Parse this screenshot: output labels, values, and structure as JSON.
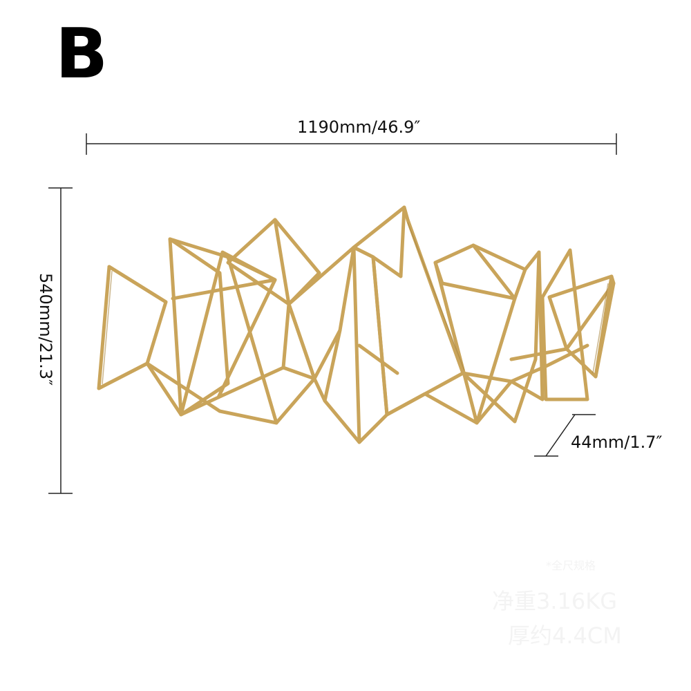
{
  "label": "B",
  "dimensions": {
    "width": "1190mm/46.9″",
    "height": "540mm/21.3″",
    "depth": "44mm/1.7″"
  },
  "watermark": {
    "line1": "*全尺规格",
    "line2": "净重3.16KG",
    "line3": "厚约4.4CM"
  },
  "colors": {
    "frame": "#c9a45a",
    "frame_dark": "#a8853f",
    "dimension_line": "#222222"
  }
}
